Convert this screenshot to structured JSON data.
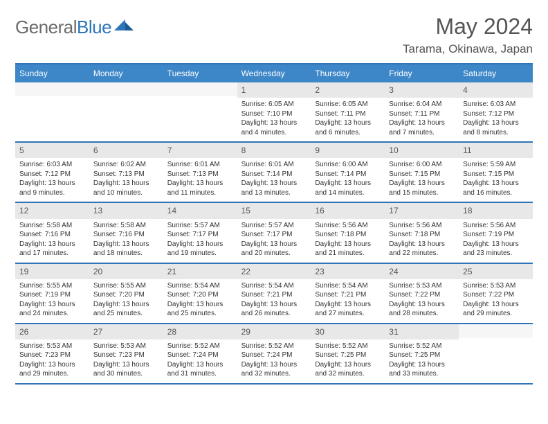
{
  "logo": {
    "text_gray": "General",
    "text_blue": "Blue"
  },
  "header": {
    "month": "May 2024",
    "location": "Tarama, Okinawa, Japan"
  },
  "colors": {
    "header_bar": "#3d87c9",
    "rule": "#2d74b8",
    "daynum_bg": "#e8e8e8",
    "text": "#333333",
    "gray_text": "#555555"
  },
  "days_of_week": [
    "Sunday",
    "Monday",
    "Tuesday",
    "Wednesday",
    "Thursday",
    "Friday",
    "Saturday"
  ],
  "weeks": [
    [
      {
        "blank": true
      },
      {
        "blank": true
      },
      {
        "blank": true
      },
      {
        "n": "1",
        "sunrise": "6:05 AM",
        "sunset": "7:10 PM",
        "daylight": "13 hours and 4 minutes."
      },
      {
        "n": "2",
        "sunrise": "6:05 AM",
        "sunset": "7:11 PM",
        "daylight": "13 hours and 6 minutes."
      },
      {
        "n": "3",
        "sunrise": "6:04 AM",
        "sunset": "7:11 PM",
        "daylight": "13 hours and 7 minutes."
      },
      {
        "n": "4",
        "sunrise": "6:03 AM",
        "sunset": "7:12 PM",
        "daylight": "13 hours and 8 minutes."
      }
    ],
    [
      {
        "n": "5",
        "sunrise": "6:03 AM",
        "sunset": "7:12 PM",
        "daylight": "13 hours and 9 minutes."
      },
      {
        "n": "6",
        "sunrise": "6:02 AM",
        "sunset": "7:13 PM",
        "daylight": "13 hours and 10 minutes."
      },
      {
        "n": "7",
        "sunrise": "6:01 AM",
        "sunset": "7:13 PM",
        "daylight": "13 hours and 11 minutes."
      },
      {
        "n": "8",
        "sunrise": "6:01 AM",
        "sunset": "7:14 PM",
        "daylight": "13 hours and 13 minutes."
      },
      {
        "n": "9",
        "sunrise": "6:00 AM",
        "sunset": "7:14 PM",
        "daylight": "13 hours and 14 minutes."
      },
      {
        "n": "10",
        "sunrise": "6:00 AM",
        "sunset": "7:15 PM",
        "daylight": "13 hours and 15 minutes."
      },
      {
        "n": "11",
        "sunrise": "5:59 AM",
        "sunset": "7:15 PM",
        "daylight": "13 hours and 16 minutes."
      }
    ],
    [
      {
        "n": "12",
        "sunrise": "5:58 AM",
        "sunset": "7:16 PM",
        "daylight": "13 hours and 17 minutes."
      },
      {
        "n": "13",
        "sunrise": "5:58 AM",
        "sunset": "7:16 PM",
        "daylight": "13 hours and 18 minutes."
      },
      {
        "n": "14",
        "sunrise": "5:57 AM",
        "sunset": "7:17 PM",
        "daylight": "13 hours and 19 minutes."
      },
      {
        "n": "15",
        "sunrise": "5:57 AM",
        "sunset": "7:17 PM",
        "daylight": "13 hours and 20 minutes."
      },
      {
        "n": "16",
        "sunrise": "5:56 AM",
        "sunset": "7:18 PM",
        "daylight": "13 hours and 21 minutes."
      },
      {
        "n": "17",
        "sunrise": "5:56 AM",
        "sunset": "7:18 PM",
        "daylight": "13 hours and 22 minutes."
      },
      {
        "n": "18",
        "sunrise": "5:56 AM",
        "sunset": "7:19 PM",
        "daylight": "13 hours and 23 minutes."
      }
    ],
    [
      {
        "n": "19",
        "sunrise": "5:55 AM",
        "sunset": "7:19 PM",
        "daylight": "13 hours and 24 minutes."
      },
      {
        "n": "20",
        "sunrise": "5:55 AM",
        "sunset": "7:20 PM",
        "daylight": "13 hours and 25 minutes."
      },
      {
        "n": "21",
        "sunrise": "5:54 AM",
        "sunset": "7:20 PM",
        "daylight": "13 hours and 25 minutes."
      },
      {
        "n": "22",
        "sunrise": "5:54 AM",
        "sunset": "7:21 PM",
        "daylight": "13 hours and 26 minutes."
      },
      {
        "n": "23",
        "sunrise": "5:54 AM",
        "sunset": "7:21 PM",
        "daylight": "13 hours and 27 minutes."
      },
      {
        "n": "24",
        "sunrise": "5:53 AM",
        "sunset": "7:22 PM",
        "daylight": "13 hours and 28 minutes."
      },
      {
        "n": "25",
        "sunrise": "5:53 AM",
        "sunset": "7:22 PM",
        "daylight": "13 hours and 29 minutes."
      }
    ],
    [
      {
        "n": "26",
        "sunrise": "5:53 AM",
        "sunset": "7:23 PM",
        "daylight": "13 hours and 29 minutes."
      },
      {
        "n": "27",
        "sunrise": "5:53 AM",
        "sunset": "7:23 PM",
        "daylight": "13 hours and 30 minutes."
      },
      {
        "n": "28",
        "sunrise": "5:52 AM",
        "sunset": "7:24 PM",
        "daylight": "13 hours and 31 minutes."
      },
      {
        "n": "29",
        "sunrise": "5:52 AM",
        "sunset": "7:24 PM",
        "daylight": "13 hours and 32 minutes."
      },
      {
        "n": "30",
        "sunrise": "5:52 AM",
        "sunset": "7:25 PM",
        "daylight": "13 hours and 32 minutes."
      },
      {
        "n": "31",
        "sunrise": "5:52 AM",
        "sunset": "7:25 PM",
        "daylight": "13 hours and 33 minutes."
      },
      {
        "blank": true
      }
    ]
  ],
  "labels": {
    "sunrise": "Sunrise: ",
    "sunset": "Sunset: ",
    "daylight": "Daylight: "
  }
}
